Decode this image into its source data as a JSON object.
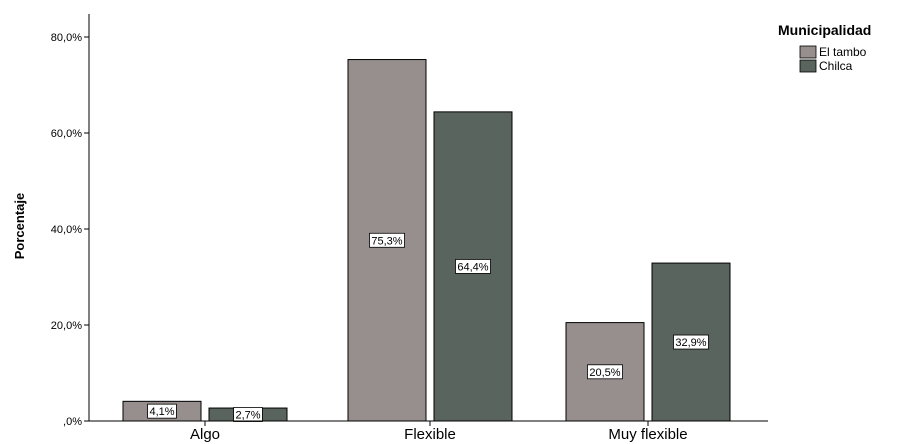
{
  "chart_data": {
    "type": "bar",
    "categories": [
      "Algo",
      "Flexible",
      "Muy flexible"
    ],
    "series": [
      {
        "name": "El tambo",
        "values": [
          4.1,
          75.3,
          20.5
        ],
        "labels": [
          "4,1%",
          "75,3%",
          "20,5%"
        ],
        "color": "#968f8d"
      },
      {
        "name": "Chilca",
        "values": [
          2.7,
          64.4,
          32.9
        ],
        "labels": [
          "2,7%",
          "64,4%",
          "32,9%"
        ],
        "color": "#5a645e"
      }
    ],
    "ylabel": "Porcentaje",
    "xlabel": "",
    "ylim": [
      0,
      80
    ],
    "yticks": [
      {
        "value": 0,
        "label": ",0%"
      },
      {
        "value": 20,
        "label": "20,0%"
      },
      {
        "value": 40,
        "label": "40,0%"
      },
      {
        "value": 60,
        "label": "60,0%"
      },
      {
        "value": 80,
        "label": "80,0%"
      }
    ],
    "legend": {
      "title": "Municipalidad",
      "position": "top-right"
    },
    "grid": false
  }
}
